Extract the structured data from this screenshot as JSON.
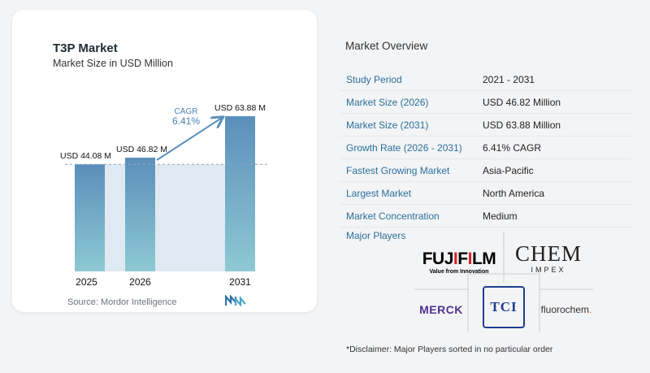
{
  "chart_data": {
    "type": "bar",
    "title": "T3P Market",
    "subtitle": "Market Size in USD Million",
    "categories": [
      "2025",
      "2026",
      "2031"
    ],
    "values": [
      44.08,
      46.82,
      63.88
    ],
    "value_labels": [
      "USD 44.08 M",
      "USD 46.82 M",
      "USD 63.88 M"
    ],
    "cagr_label": "CAGR",
    "cagr_value": "6.41%",
    "colors": {
      "bar_top": "#5b8fbb",
      "bar_bottom": "#8ec9d3",
      "band": "#dfe9f1",
      "arrow": "#5b8fbb",
      "cagr_text": "#4a7fad"
    }
  },
  "source": "Source:  Mordor Intelligence",
  "overview": {
    "title": "Market Overview",
    "rows": [
      {
        "label": "Study Period",
        "value": "2021 - 2031"
      },
      {
        "label": "Market Size (2026)",
        "value": "USD 46.82 Million"
      },
      {
        "label": "Market Size (2031)",
        "value": "USD 63.88 Million"
      },
      {
        "label": "Growth Rate (2026 - 2031)",
        "value": "6.41% CAGR"
      },
      {
        "label": "Fastest Growing Market",
        "value": "Asia-Pacific"
      },
      {
        "label": "Largest Market",
        "value": "North America"
      },
      {
        "label": "Market Concentration",
        "value": "Medium"
      }
    ]
  },
  "players": {
    "title": "Major Players",
    "fujifilm": {
      "prefix": "FUJ",
      "i": "I",
      "mid": "F",
      "i2": "I",
      "suffix": "LM",
      "tagline": "Value from Innovation"
    },
    "chem_impex": {
      "main": "CHEM",
      "sub": "IMPEX"
    },
    "merck": "MERCK",
    "tci": "TCI",
    "fluorochem": {
      "main": "fluorochem",
      "dot": "."
    }
  },
  "disclaimer": "*Disclaimer: Major Players sorted in no particular order"
}
